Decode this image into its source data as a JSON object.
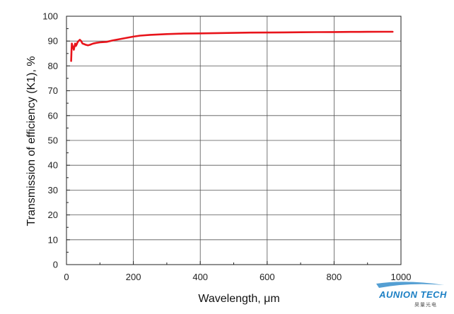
{
  "chart_data": {
    "type": "line",
    "xlabel": "Wavelength, μm",
    "ylabel": "Transmission of efficiency (K1), %",
    "xlim": [
      0,
      1000
    ],
    "ylim": [
      0,
      100
    ],
    "xticks": [
      0,
      200,
      400,
      600,
      800,
      1000
    ],
    "yticks": [
      0,
      10,
      20,
      30,
      40,
      50,
      60,
      70,
      80,
      90,
      100
    ],
    "grid": true,
    "series": [
      {
        "color": "#e8141b",
        "x": [
          14,
          15,
          16,
          18,
          20,
          22,
          24,
          26,
          28,
          30,
          33,
          36,
          40,
          44,
          48,
          52,
          58,
          64,
          70,
          80,
          90,
          100,
          120,
          140,
          160,
          180,
          200,
          220,
          250,
          300,
          350,
          400,
          450,
          500,
          550,
          600,
          650,
          700,
          750,
          800,
          850,
          900,
          950,
          975
        ],
        "y": [
          82,
          86,
          89,
          88,
          87.5,
          86.5,
          88,
          89,
          88,
          88.5,
          89.5,
          90,
          90.5,
          90,
          89,
          88.8,
          88.5,
          88.3,
          88.5,
          89,
          89.3,
          89.5,
          89.7,
          90.3,
          90.8,
          91.3,
          91.8,
          92.2,
          92.5,
          92.8,
          93,
          93.1,
          93.2,
          93.3,
          93.4,
          93.45,
          93.5,
          93.55,
          93.6,
          93.65,
          93.7,
          93.72,
          93.75,
          93.75
        ]
      }
    ]
  },
  "logo": {
    "name": "AUNION TECH",
    "sub": "昊量光电"
  }
}
